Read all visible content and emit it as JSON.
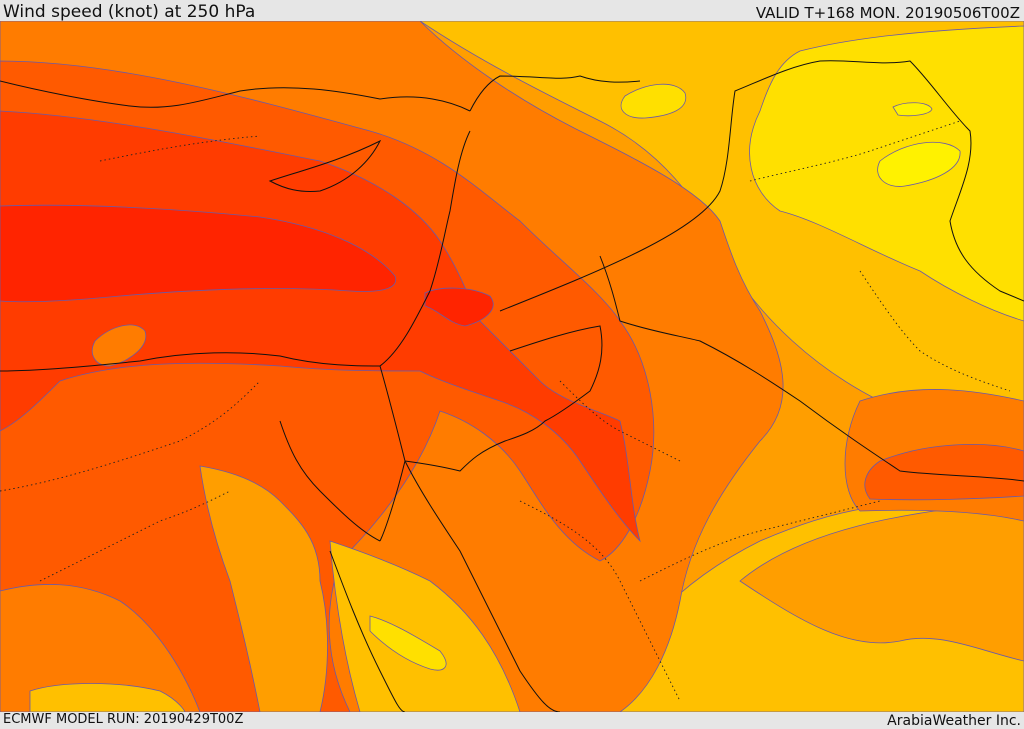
{
  "header": {
    "title": "Wind speed (knot) at 250 hPa",
    "valid": "VALID T+168 MON. 20190506T00Z"
  },
  "footer": {
    "model_run": "ECMWF MODEL RUN: 20190429T00Z",
    "credit": "ArabiaWeather Inc."
  },
  "map": {
    "variable": "wind speed",
    "units": "knot",
    "level_hPa": 250,
    "color_scale": [
      "#ffe000",
      "#ffc000",
      "#ff9e00",
      "#ff7c00",
      "#ff5a00",
      "#ff3c00",
      "#ff2400"
    ],
    "contour_color": "#6a5aa8",
    "border_color": "#111111"
  }
}
